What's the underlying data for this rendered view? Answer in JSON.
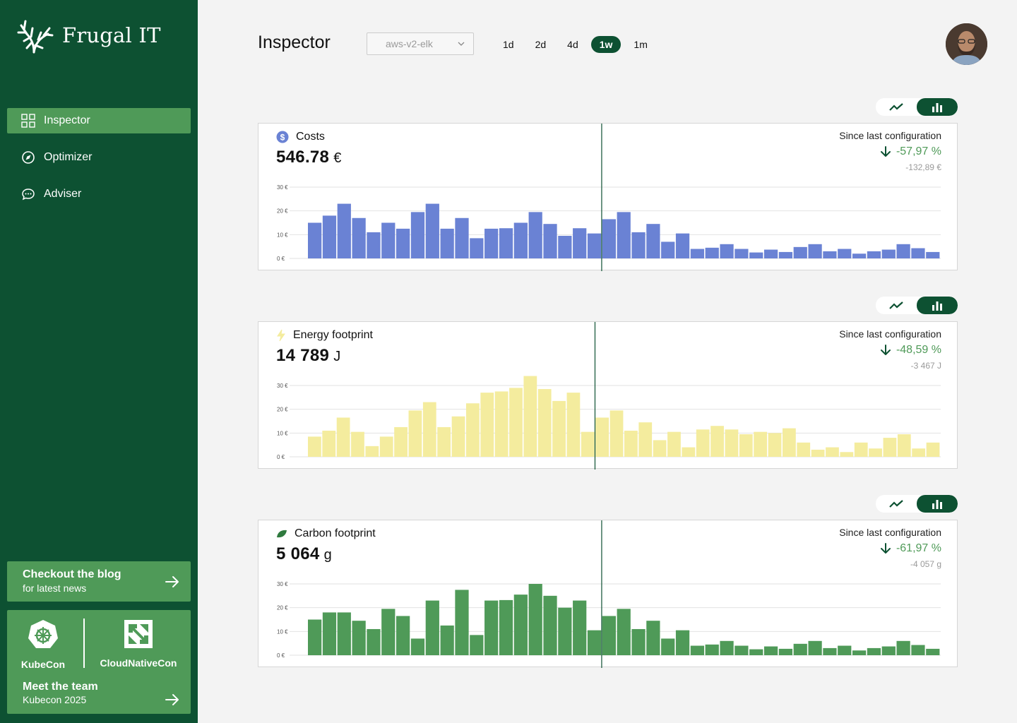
{
  "app": {
    "name": "Frugal IT"
  },
  "sidebar": {
    "items": [
      {
        "label": "Inspector",
        "icon": "grid-icon",
        "active": true
      },
      {
        "label": "Optimizer",
        "icon": "compass-icon",
        "active": false
      },
      {
        "label": "Adviser",
        "icon": "chat-icon",
        "active": false
      }
    ],
    "blog": {
      "title": "Checkout the blog",
      "subtitle": "for latest news"
    },
    "team": {
      "conf_left": "KubeCon",
      "conf_right": "CloudNativeCon",
      "title": "Meet the team",
      "subtitle": "Kubecon 2025"
    }
  },
  "header": {
    "title": "Inspector",
    "cluster_select": "aws-v2-elk",
    "ranges": [
      {
        "label": "1d",
        "active": false
      },
      {
        "label": "2d",
        "active": false
      },
      {
        "label": "4d",
        "active": false
      },
      {
        "label": "1w",
        "active": true
      },
      {
        "label": "1m",
        "active": false
      }
    ]
  },
  "colors": {
    "sidebar_bg": "#0d5132",
    "accent_green": "#4f9a58",
    "costs": "#6a82d4",
    "energy": "#f4ec9e",
    "carbon": "#4f9a58"
  },
  "cards": [
    {
      "title": "Costs",
      "icon": "dollar-icon",
      "value": "546.78",
      "unit": "€",
      "since_label": "Since last configuration",
      "since_pct": "-57,97 %",
      "since_abs": "-132,89 €"
    },
    {
      "title": "Energy footprint",
      "icon": "lightning-icon",
      "value": "14 789",
      "unit": "J",
      "since_label": "Since last configuration",
      "since_pct": "-48,59 %",
      "since_abs": "-3 467 J"
    },
    {
      "title": "Carbon footprint",
      "icon": "leaf-icon",
      "value": "5 064",
      "unit": "g",
      "since_label": "Since last configuration",
      "since_pct": "-61,97 %",
      "since_abs": "-4 057 g"
    }
  ],
  "chart_data": [
    {
      "type": "bar",
      "title": "Costs",
      "yticks": [
        "30 €",
        "20 €",
        "10 €",
        "0 €"
      ],
      "ytick_values": [
        30,
        20,
        10,
        0
      ],
      "ylim": [
        0,
        30
      ],
      "marker_index": 20,
      "color": "#6a82d4",
      "values": [
        15,
        18,
        23,
        17,
        11,
        15,
        12.5,
        19.5,
        23,
        12.5,
        17,
        8.5,
        12.5,
        12.7,
        15,
        19.5,
        14.5,
        9.5,
        12.7,
        10.5,
        16.5,
        19.5,
        11,
        14.5,
        7,
        10.5,
        4,
        4.5,
        6,
        4,
        2.5,
        3.7,
        2.7,
        4.8,
        6,
        3,
        4,
        2,
        3,
        3.7,
        6,
        4.3,
        2.7
      ]
    },
    {
      "type": "bar",
      "title": "Energy footprint",
      "yticks": [
        "30 €",
        "20 €",
        "10 €",
        "0 €"
      ],
      "ytick_values": [
        30,
        20,
        10,
        0
      ],
      "ylim": [
        0,
        30
      ],
      "marker_index": 20,
      "color": "#f4ec9e",
      "values": [
        8.5,
        11,
        16.5,
        10.5,
        4.5,
        8.5,
        12.5,
        19.5,
        23,
        12.5,
        17,
        22.5,
        27,
        27.5,
        29,
        34,
        28.5,
        23.5,
        27,
        10.5,
        16.5,
        19.5,
        11,
        14.5,
        7,
        10.5,
        4,
        11.5,
        13,
        11.5,
        9.5,
        10.5,
        10,
        12,
        6,
        3,
        4,
        2,
        6,
        3.5,
        8,
        9.5,
        3.5,
        6
      ]
    },
    {
      "type": "bar",
      "title": "Carbon footprint",
      "yticks": [
        "30 €",
        "20 €",
        "10 €",
        "0 €"
      ],
      "ytick_values": [
        30,
        20,
        10,
        0
      ],
      "ylim": [
        0,
        30
      ],
      "marker_index": 20,
      "color": "#4f9a58",
      "values": [
        15,
        18,
        18,
        14.5,
        11,
        19.5,
        16.5,
        7,
        23,
        12.5,
        27.5,
        8.5,
        23,
        23.2,
        25.5,
        30,
        25,
        20,
        23,
        10.5,
        16.5,
        19.5,
        11,
        14.5,
        7,
        10.5,
        4,
        4.5,
        6,
        4,
        2.5,
        3.7,
        2.7,
        4.8,
        6,
        3,
        4,
        2,
        3,
        3.7,
        6,
        4.3,
        2.7
      ]
    }
  ]
}
